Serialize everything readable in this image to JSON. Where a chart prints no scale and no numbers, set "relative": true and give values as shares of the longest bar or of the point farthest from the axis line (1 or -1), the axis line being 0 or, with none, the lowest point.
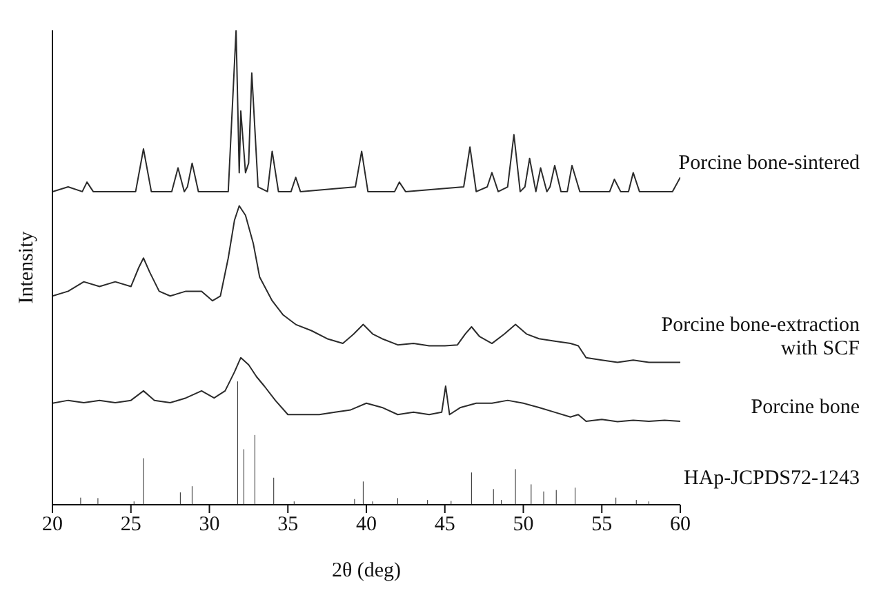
{
  "chart_data": {
    "type": "line",
    "xlabel": "2θ (deg)",
    "ylabel": "Intensity",
    "relative": true,
    "xlim": [
      20,
      60
    ],
    "xticks": [
      20,
      25,
      30,
      35,
      40,
      45,
      50,
      55,
      60
    ],
    "grid": false,
    "marker": "none",
    "series": [
      {
        "name": "Porcine bone-sintered",
        "color": "#2b2b2b",
        "x": [
          20,
          21,
          21.9,
          22.2,
          22.6,
          25.3,
          25.8,
          26.3,
          27.6,
          28.0,
          28.4,
          28.6,
          28.9,
          29.3,
          31.2,
          31.7,
          31.9,
          32.0,
          32.3,
          32.5,
          32.7,
          33.1,
          33.7,
          34.0,
          34.4,
          35.2,
          35.5,
          35.8,
          39.3,
          39.7,
          40.1,
          41.8,
          42.1,
          42.5,
          46.2,
          46.6,
          47.0,
          47.7,
          48.0,
          48.4,
          49.0,
          49.4,
          49.8,
          50.1,
          50.4,
          50.8,
          51.1,
          51.5,
          51.7,
          52.0,
          52.4,
          52.8,
          53.1,
          53.6,
          55.5,
          55.8,
          56.2,
          56.7,
          57.0,
          57.4,
          59.5,
          60
        ],
        "values": [
          0.66,
          0.67,
          0.66,
          0.68,
          0.66,
          0.66,
          0.75,
          0.66,
          0.66,
          0.71,
          0.66,
          0.67,
          0.72,
          0.66,
          0.66,
          1.0,
          0.7,
          0.83,
          0.7,
          0.72,
          0.91,
          0.67,
          0.66,
          0.745,
          0.66,
          0.66,
          0.69,
          0.66,
          0.67,
          0.745,
          0.66,
          0.66,
          0.68,
          0.66,
          0.67,
          0.754,
          0.66,
          0.67,
          0.7,
          0.66,
          0.67,
          0.78,
          0.66,
          0.67,
          0.73,
          0.66,
          0.71,
          0.66,
          0.67,
          0.715,
          0.66,
          0.66,
          0.715,
          0.66,
          0.66,
          0.686,
          0.66,
          0.66,
          0.7,
          0.66,
          0.66,
          0.69
        ]
      },
      {
        "name": "Porcine bone-extraction with SCF",
        "color": "#2b2b2b",
        "x": [
          20,
          21,
          22,
          23,
          24,
          25,
          25.5,
          25.8,
          26.2,
          26.8,
          27.5,
          28.5,
          29.5,
          30.2,
          30.7,
          31.2,
          31.6,
          31.9,
          32.3,
          32.8,
          33.2,
          34,
          34.7,
          35.5,
          36.5,
          37.5,
          38.5,
          39.2,
          39.8,
          40.4,
          41,
          42,
          43,
          44,
          45,
          45.8,
          46.3,
          46.7,
          47.2,
          48,
          48.8,
          49.5,
          50.2,
          51,
          52,
          53,
          53.5,
          54,
          55,
          56,
          57,
          58,
          59,
          60
        ],
        "values": [
          0.44,
          0.45,
          0.47,
          0.46,
          0.47,
          0.46,
          0.5,
          0.52,
          0.49,
          0.45,
          0.44,
          0.45,
          0.45,
          0.43,
          0.44,
          0.52,
          0.6,
          0.63,
          0.61,
          0.55,
          0.48,
          0.43,
          0.4,
          0.38,
          0.367,
          0.35,
          0.34,
          0.36,
          0.38,
          0.36,
          0.35,
          0.337,
          0.34,
          0.335,
          0.335,
          0.337,
          0.36,
          0.375,
          0.355,
          0.34,
          0.36,
          0.38,
          0.36,
          0.35,
          0.345,
          0.34,
          0.335,
          0.31,
          0.305,
          0.3,
          0.305,
          0.3,
          0.3,
          0.3
        ]
      },
      {
        "name": "Porcine bone",
        "color": "#2b2b2b",
        "x": [
          20,
          21,
          22,
          23,
          24,
          25,
          25.8,
          26.5,
          27.5,
          28.5,
          29.5,
          30.3,
          31,
          31.6,
          32.0,
          32.5,
          33,
          33.5,
          34.2,
          35,
          36,
          37,
          38,
          39,
          40,
          41,
          42,
          43,
          44,
          44.8,
          45.05,
          45.3,
          46,
          47,
          48,
          49,
          50,
          51,
          52,
          53,
          53.5,
          54,
          55,
          56,
          57,
          58,
          59,
          60
        ],
        "values": [
          0.214,
          0.22,
          0.215,
          0.22,
          0.215,
          0.22,
          0.24,
          0.22,
          0.215,
          0.225,
          0.24,
          0.225,
          0.24,
          0.28,
          0.31,
          0.295,
          0.27,
          0.25,
          0.22,
          0.19,
          0.19,
          0.19,
          0.195,
          0.2,
          0.214,
          0.205,
          0.19,
          0.195,
          0.19,
          0.195,
          0.25,
          0.19,
          0.205,
          0.214,
          0.214,
          0.22,
          0.214,
          0.205,
          0.195,
          0.185,
          0.19,
          0.176,
          0.18,
          0.175,
          0.178,
          0.176,
          0.178,
          0.176
        ]
      },
      {
        "name": "HAp-JCPDS72-1243",
        "type": "bar",
        "color": "#2b2b2b",
        "x": [
          21.8,
          22.9,
          25.2,
          25.8,
          28.15,
          28.9,
          31.8,
          32.2,
          32.9,
          34.1,
          35.4,
          39.25,
          39.8,
          40.4,
          42.0,
          43.9,
          45.4,
          46.7,
          48.1,
          48.6,
          49.5,
          50.5,
          51.3,
          52.1,
          53.3,
          55.9,
          57.2,
          58.0
        ],
        "values": [
          0.015,
          0.014,
          0.007,
          0.098,
          0.026,
          0.039,
          0.26,
          0.117,
          0.147,
          0.057,
          0.007,
          0.012,
          0.049,
          0.007,
          0.014,
          0.01,
          0.008,
          0.068,
          0.033,
          0.01,
          0.075,
          0.043,
          0.028,
          0.031,
          0.036,
          0.015,
          0.01,
          0.007
        ]
      }
    ]
  }
}
